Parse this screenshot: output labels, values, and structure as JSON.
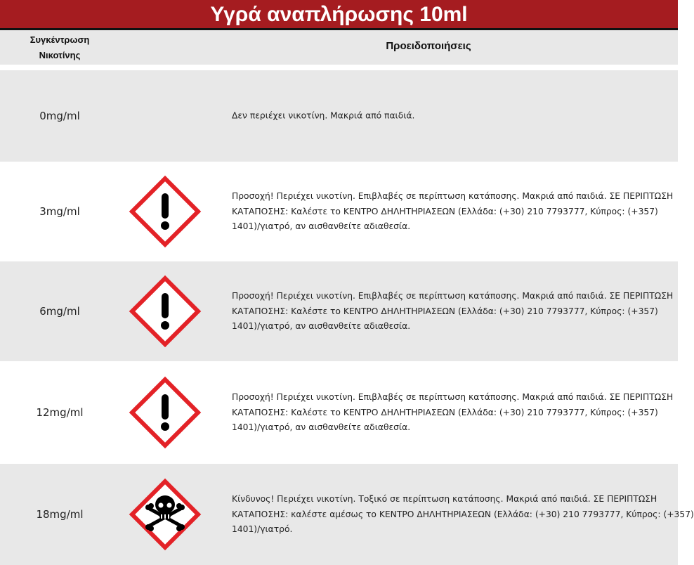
{
  "title": "Υγρά αναπλήρωσης 10ml",
  "header": {
    "concentration": "Συγκέντρωση Νικοτίνης",
    "warnings": "Προειδοποιήσεις"
  },
  "colors": {
    "title_bg": "#a51c20",
    "row_alt": "#e8e8e8",
    "pictogram_border": "#e32227"
  },
  "rows": [
    {
      "concentration": "0mg/ml",
      "icon": "none",
      "lines": [
        "Δεν περιέχει νικοτίνη. Μακριά από παιδιά."
      ]
    },
    {
      "concentration": "3mg/ml",
      "icon": "exclamation-hazard-icon",
      "lines": [
        "Προσοχή! Περιέχει νικοτίνη. Επιβλαβές σε περίπτωση κατάποσης. Μακριά από παιδιά. ΣΕ ΠΕΡΙΠΤΩΣΗ",
        "ΚΑΤΑΠΟΣΗΣ: Καλέστε το ΚΕΝΤΡΟ ΔΗΛΗΤΗΡΙΑΣΕΩΝ (Ελλάδα: (+30) 210 7793777, Κύπρος: (+357)",
        "1401)/γιατρό, αν αισθανθείτε αδιαθεσία."
      ]
    },
    {
      "concentration": "6mg/ml",
      "icon": "exclamation-hazard-icon",
      "lines": [
        "Προσοχή! Περιέχει νικοτίνη. Επιβλαβές σε περίπτωση κατάποσης. Μακριά από παιδιά. ΣΕ ΠΕΡΙΠΤΩΣΗ",
        "ΚΑΤΑΠΟΣΗΣ: Καλέστε το ΚΕΝΤΡΟ ΔΗΛΗΤΗΡΙΑΣΕΩΝ (Ελλάδα: (+30) 210 7793777, Κύπρος: (+357)",
        "1401)/γιατρό, αν αισθανθείτε αδιαθεσία."
      ]
    },
    {
      "concentration": "12mg/ml",
      "icon": "exclamation-hazard-icon",
      "lines": [
        "Προσοχή! Περιέχει νικοτίνη. Επιβλαβές σε περίπτωση κατάποσης. Μακριά από παιδιά. ΣΕ ΠΕΡΙΠΤΩΣΗ",
        "ΚΑΤΑΠΟΣΗΣ: Καλέστε το ΚΕΝΤΡΟ ΔΗΛΗΤΗΡΙΑΣΕΩΝ (Ελλάδα: (+30) 210 7793777, Κύπρος: (+357)",
        "1401)/γιατρό, αν αισθανθείτε αδιαθεσία."
      ]
    },
    {
      "concentration": "18mg/ml",
      "icon": "skull-crossbones-icon",
      "lines": [
        "Κίνδυνος! Περιέχει νικοτίνη. Τοξικό σε περίπτωση κατάποσης. Μακριά από παιδιά. ΣΕ ΠΕΡΙΠΤΩΣΗ",
        "ΚΑΤΑΠΟΣΗΣ: καλέστε αμέσως το ΚΕΝΤΡΟ ΔΗΛΗΤΗΡΙΑΣΕΩΝ (Ελλάδα: (+30) 210 7793777, Κύπρος: (+357)",
        "1401)/γιατρό."
      ]
    }
  ]
}
